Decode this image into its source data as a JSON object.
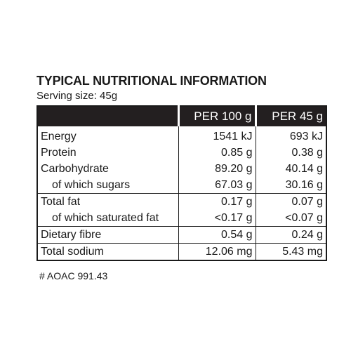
{
  "title": "TYPICAL NUTRITIONAL INFORMATION",
  "serving_size": "Serving size: 45g",
  "columns": [
    "",
    "PER 100 g",
    "PER 45 g"
  ],
  "rows": [
    {
      "name": "Energy",
      "per_100g": "1541 kJ",
      "per_45g": "693  kJ",
      "indent": false,
      "group_start": false
    },
    {
      "name": "Protein",
      "per_100g": "0.85 g",
      "per_45g": "0.38 g",
      "indent": false,
      "group_start": false
    },
    {
      "name": "Carbohydrate",
      "per_100g": "89.20 g",
      "per_45g": "40.14 g",
      "indent": false,
      "group_start": false
    },
    {
      "name": "of which sugars",
      "per_100g": "67.03 g",
      "per_45g": "30.16 g",
      "indent": true,
      "group_start": false
    },
    {
      "name": "Total fat",
      "per_100g": "0.17 g",
      "per_45g": "0.07 g",
      "indent": false,
      "group_start": true
    },
    {
      "name": "of which saturated fat",
      "per_100g": "<0.17 g",
      "per_45g": "<0.07 g",
      "indent": true,
      "group_start": false
    },
    {
      "name": "Dietary fibre",
      "per_100g": "0.54 g",
      "per_45g": "0.24 g",
      "indent": false,
      "group_start": true
    },
    {
      "name": "Total sodium",
      "per_100g": "12.06 mg",
      "per_45g": "5.43 mg",
      "indent": false,
      "group_start": true
    }
  ],
  "footnote": "# AOAC 991.43",
  "colors": {
    "header_bg": "#231f20",
    "header_text": "#ffffff",
    "text": "#1a1a1a"
  }
}
